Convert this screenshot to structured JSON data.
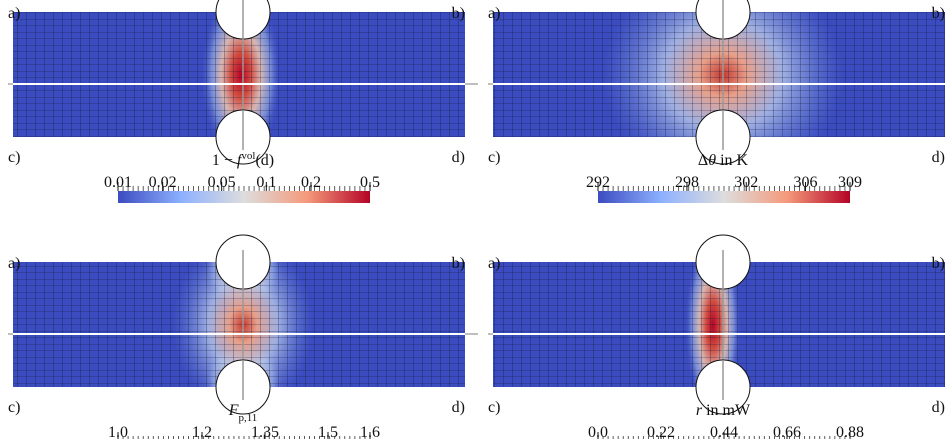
{
  "panels": [
    {
      "corner_labels": [
        "a)",
        "b)",
        "c)",
        "d)"
      ],
      "colorbar": {
        "title": [
          "1 − ",
          "f",
          "vol",
          "(d)"
        ],
        "scale": "log",
        "lim": [
          0.01,
          0.5
        ],
        "ticks": [
          0.01,
          0.02,
          0.05,
          0.1,
          0.2,
          0.5
        ]
      }
    },
    {
      "corner_labels": [
        "a)",
        "b)",
        "c)",
        "d)"
      ],
      "colorbar": {
        "title": [
          "Δ",
          "θ",
          " in K"
        ],
        "scale": "linear",
        "lim": [
          292,
          309
        ],
        "ticks": [
          292,
          298,
          302,
          306,
          309
        ]
      }
    },
    {
      "corner_labels": [
        "a)",
        "b)",
        "c)",
        "d)"
      ],
      "colorbar": {
        "title": [
          "F",
          "p,11"
        ],
        "scale": "linear",
        "lim": [
          1.0,
          1.6
        ],
        "ticks": [
          {
            "value": 1.0,
            "label": "1.0"
          },
          1.2,
          1.35,
          1.5,
          1.6
        ]
      }
    },
    {
      "corner_labels": [
        "a)",
        "b)",
        "c)",
        "d)"
      ],
      "colorbar": {
        "title": [
          "r",
          " in mW"
        ],
        "scale": "linear",
        "lim": [
          0,
          0.88
        ],
        "ticks": [
          {
            "value": 0,
            "label": "0.0"
          },
          0.22,
          0.44,
          0.66,
          0.88
        ]
      }
    }
  ]
}
